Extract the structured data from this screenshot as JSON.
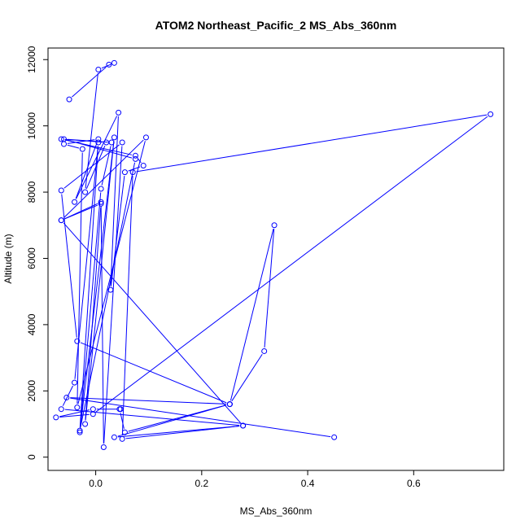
{
  "chart_data": {
    "type": "line",
    "title": "ATOM2 Northeast_Pacific_2 MS_Abs_360nm",
    "xlabel": "MS_Abs_360nm",
    "ylabel": "Altitude (m)",
    "xlim": [
      -0.09,
      0.77
    ],
    "ylim": [
      -400,
      12350
    ],
    "x_ticks": [
      0.0,
      0.2,
      0.4,
      0.6
    ],
    "x_tick_labels": [
      "0.0",
      "0.2",
      "0.4",
      "0.6"
    ],
    "y_ticks": [
      0,
      2000,
      4000,
      6000,
      8000,
      10000,
      12000
    ],
    "y_tick_labels": [
      "0",
      "2000",
      "4000",
      "6000",
      "8000",
      "10000",
      "12000"
    ],
    "grid": false,
    "color": "#0000ff",
    "series": [
      {
        "name": "",
        "points": [
          [
            -0.05,
            10800
          ],
          [
            0.025,
            11850
          ],
          [
            0.035,
            11900
          ],
          [
            0.005,
            11700
          ],
          [
            -0.02,
            8000
          ],
          [
            0.02,
            9500
          ],
          [
            -0.065,
            9600
          ],
          [
            0.075,
            9100
          ],
          [
            0.09,
            8800
          ],
          [
            0.055,
            8600
          ],
          [
            0.028,
            5050
          ],
          [
            0.043,
            10400
          ],
          [
            -0.04,
            7700
          ],
          [
            0.005,
            9600
          ],
          [
            -0.06,
            9450
          ],
          [
            -0.025,
            9300
          ],
          [
            -0.035,
            1500
          ],
          [
            0.095,
            9650
          ],
          [
            -0.065,
            7150
          ],
          [
            0.01,
            7650
          ],
          [
            -0.02,
            1000
          ],
          [
            0.035,
            9650
          ],
          [
            -0.03,
            750
          ],
          [
            0.01,
            8100
          ],
          [
            0.03,
            9500
          ],
          [
            -0.06,
            9600
          ],
          [
            0.075,
            9000
          ],
          [
            -0.03,
            800
          ],
          [
            0.005,
            9500
          ],
          [
            -0.04,
            2250
          ],
          [
            -0.065,
            1450
          ],
          [
            0.278,
            950
          ],
          [
            0.035,
            600
          ],
          [
            0.253,
            1600
          ],
          [
            -0.035,
            3500
          ],
          [
            -0.065,
            8050
          ],
          [
            0.05,
            9500
          ],
          [
            0.015,
            300
          ],
          [
            0.01,
            7700
          ],
          [
            -0.065,
            7150
          ],
          [
            0.278,
            950
          ],
          [
            0.05,
            550
          ],
          [
            0.07,
            8600
          ],
          [
            0.745,
            10350
          ],
          [
            -0.005,
            1300
          ],
          [
            -0.075,
            1200
          ],
          [
            -0.005,
            1450
          ],
          [
            0.047,
            1450
          ],
          [
            0.045,
            1450
          ],
          [
            0.055,
            750
          ],
          [
            0.253,
            1600
          ],
          [
            0.318,
            3200
          ],
          [
            0.337,
            7000
          ],
          [
            0.253,
            1600
          ],
          [
            -0.055,
            1800
          ],
          [
            0.45,
            600
          ]
        ]
      }
    ]
  }
}
